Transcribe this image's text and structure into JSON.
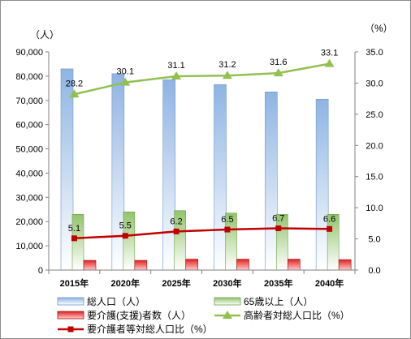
{
  "chart_data": {
    "type": "bar",
    "categories": [
      "2015年",
      "2020年",
      "2025年",
      "2030年",
      "2035年",
      "2040年"
    ],
    "left_axis": {
      "unit": "（人）",
      "min": 0,
      "max": 90000,
      "step": 10000,
      "ticks": [
        "0",
        "10,000",
        "20,000",
        "30,000",
        "40,000",
        "50,000",
        "60,000",
        "70,000",
        "80,000",
        "90,000"
      ]
    },
    "right_axis": {
      "unit": "（%）",
      "min": 0,
      "max": 35,
      "step": 5,
      "ticks": [
        "0.0",
        "5.0",
        "10.0",
        "15.0",
        "20.0",
        "25.0",
        "30.0",
        "35.0"
      ]
    },
    "series": [
      {
        "name": "総人口（人）",
        "type": "bar",
        "axis": "left",
        "color": "#8eb4e3",
        "values": [
          83000,
          81000,
          78500,
          76500,
          73500,
          70500
        ]
      },
      {
        "name": "65歳以上（人）",
        "type": "bar",
        "axis": "left",
        "color": "#92c46a",
        "values": [
          23000,
          24000,
          24500,
          23500,
          23000,
          23000
        ]
      },
      {
        "name": "要介護(支援)者数（人）",
        "type": "bar",
        "axis": "left",
        "color": "#e02020",
        "values": [
          4000,
          4000,
          4500,
          4500,
          4500,
          4300
        ]
      },
      {
        "name": "高齢者対総人口比（%）",
        "type": "line",
        "axis": "right",
        "color": "#92c050",
        "marker": "triangle",
        "values": [
          28.2,
          30.1,
          31.1,
          31.2,
          31.6,
          33.1
        ],
        "labels": [
          "28.2",
          "30.1",
          "31.1",
          "31.2",
          "31.6",
          "33.1"
        ]
      },
      {
        "name": "要介護者等対総人口比（%）",
        "type": "line",
        "axis": "right",
        "color": "#c00000",
        "marker": "square",
        "values": [
          5.1,
          5.5,
          6.2,
          6.5,
          6.7,
          6.6
        ],
        "labels": [
          "5.1",
          "5.5",
          "6.2",
          "6.5",
          "6.7",
          "6.6"
        ]
      }
    ],
    "grid": false,
    "legend_position": "bottom"
  }
}
